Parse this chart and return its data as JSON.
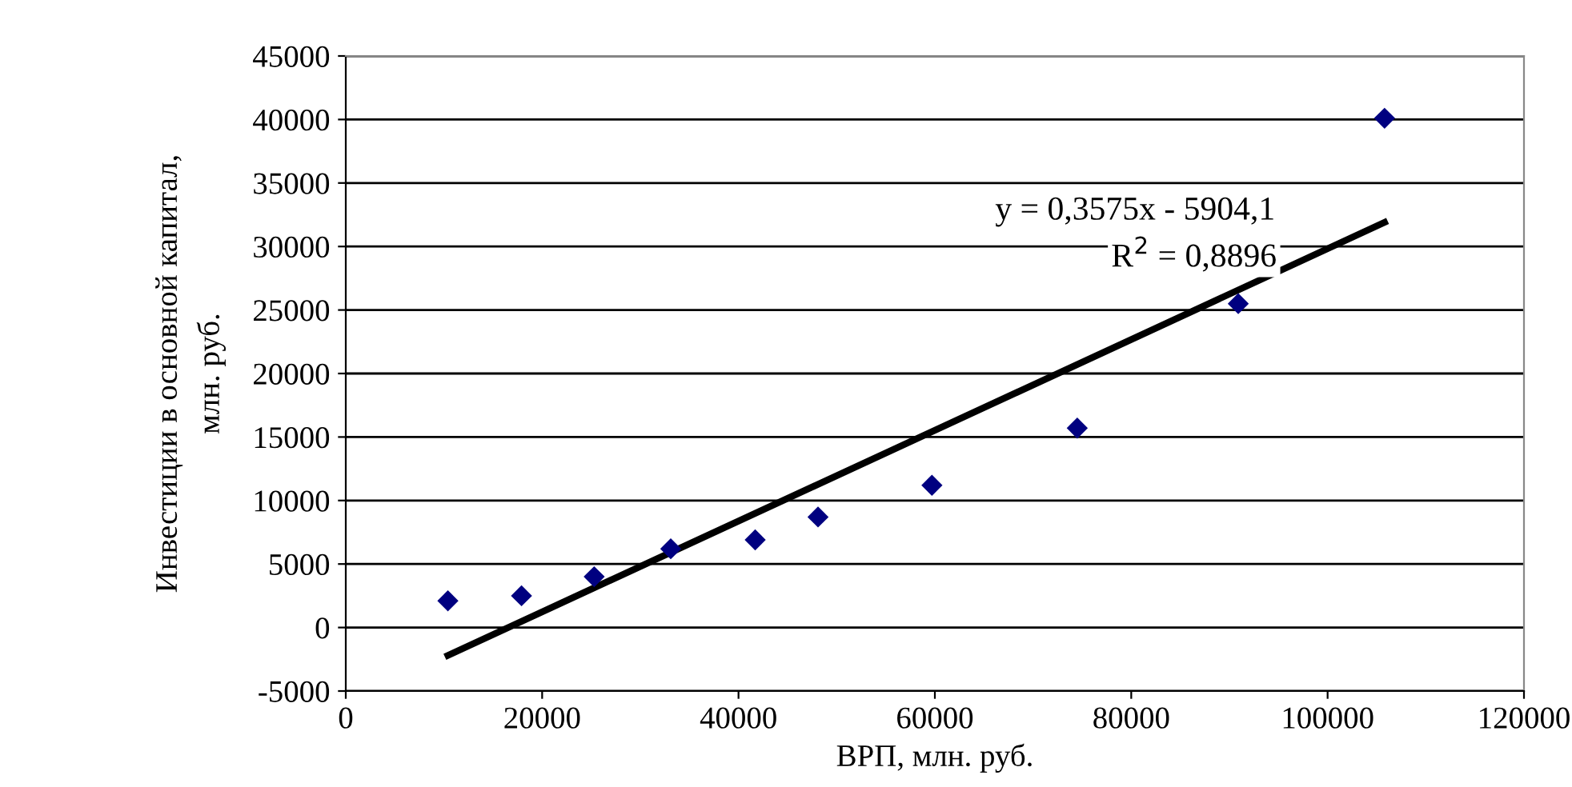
{
  "chart_data": {
    "type": "scatter",
    "xlabel": "ВРП, млн. руб.",
    "ylabel": "Инвестиции в основной капитал,\nмлн. руб.",
    "x": [
      10400,
      17900,
      25300,
      33100,
      41700,
      48100,
      59700,
      74500,
      90900,
      105800
    ],
    "series": [
      {
        "color": "#000080",
        "marker": "diamond",
        "values": [
          2100,
          2500,
          4000,
          6200,
          6900,
          8700,
          11200,
          15700,
          25500,
          40100
        ]
      },
      {
        "type": "line",
        "color": "#000000",
        "marker": "none",
        "line_style": "solid",
        "x": [
          10400,
          105800
        ],
        "values": [
          -2200,
          31900
        ]
      }
    ],
    "annotations": [
      "y = 0,3575x - 5904,1",
      "R$^{2}$ = 0,8896"
    ],
    "xlim": [
      0,
      120000
    ],
    "xticks": [
      0,
      20000,
      40000,
      60000,
      80000,
      100000,
      120000
    ],
    "ylim": [
      -5000,
      45000
    ],
    "yticks": [
      -5000,
      0,
      5000,
      10000,
      15000,
      20000,
      25000,
      30000,
      35000,
      40000,
      45000
    ],
    "grid": "y",
    "legend": false
  }
}
